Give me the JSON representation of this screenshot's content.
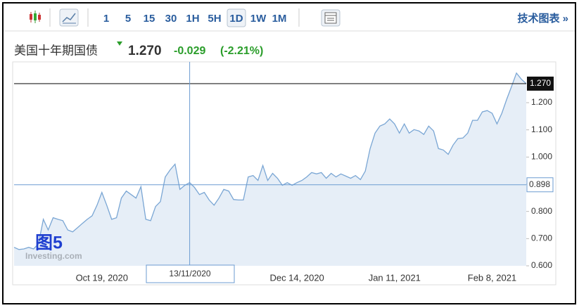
{
  "toolbar": {
    "intervals": [
      "1",
      "5",
      "15",
      "30",
      "1H",
      "5H",
      "1D",
      "1W",
      "1M"
    ],
    "link": "技术图表 »"
  },
  "quote": {
    "name": "美国十年期国债",
    "price": "1.270",
    "change": "-0.029",
    "change_percent": "(-2.21%)"
  },
  "chart_data": {
    "type": "area",
    "categories": [
      null,
      null,
      null,
      null,
      null,
      null,
      null,
      null,
      null,
      null,
      null,
      null,
      null,
      null,
      null,
      null,
      null,
      null,
      "Oct 19, 2020",
      null,
      null,
      null,
      null,
      null,
      null,
      null,
      null,
      null,
      null,
      null,
      null,
      null,
      null,
      null,
      null,
      null,
      null,
      null,
      null,
      null,
      null,
      null,
      null,
      null,
      null,
      null,
      null,
      null,
      null,
      null,
      null,
      null,
      null,
      null,
      null,
      null,
      null,
      null,
      "Dec 14, 2020",
      null,
      null,
      null,
      null,
      null,
      null,
      null,
      null,
      null,
      null,
      null,
      null,
      null,
      null,
      null,
      null,
      null,
      null,
      null,
      "Jan 11, 2021",
      null,
      null,
      null,
      null,
      null,
      null,
      null,
      null,
      null,
      null,
      null,
      null,
      null,
      null,
      null,
      null,
      null,
      null,
      null,
      "Feb 8, 2021",
      null,
      null,
      null,
      null,
      null,
      null,
      null
    ],
    "series": [
      {
        "color": "#7aa6d4",
        "values": [
          0.668,
          0.66,
          0.662,
          0.668,
          0.662,
          0.681,
          0.771,
          0.732,
          0.777,
          0.771,
          0.766,
          0.732,
          0.725,
          0.74,
          0.756,
          0.771,
          0.784,
          0.823,
          0.87,
          0.823,
          0.771,
          0.777,
          0.849,
          0.875,
          0.862,
          0.849,
          0.891,
          0.771,
          0.766,
          0.818,
          0.836,
          0.927,
          0.953,
          0.974,
          0.881,
          0.896,
          0.906,
          0.888,
          0.862,
          0.87,
          0.842,
          0.823,
          0.849,
          0.881,
          0.875,
          0.844,
          0.842,
          0.842,
          0.927,
          0.932,
          0.914,
          0.969,
          0.914,
          0.94,
          0.922,
          0.896,
          0.906,
          0.896,
          0.906,
          0.914,
          0.927,
          0.943,
          0.938,
          0.943,
          0.922,
          0.94,
          0.927,
          0.938,
          0.93,
          0.922,
          0.932,
          0.917,
          0.948,
          1.031,
          1.088,
          1.114,
          1.122,
          1.14,
          1.122,
          1.088,
          1.122,
          1.088,
          1.101,
          1.096,
          1.083,
          1.114,
          1.096,
          1.031,
          1.026,
          1.01,
          1.044,
          1.068,
          1.07,
          1.088,
          1.135,
          1.135,
          1.166,
          1.171,
          1.161,
          1.122,
          1.161,
          1.213,
          1.26,
          1.309,
          1.286,
          1.27
        ]
      }
    ],
    "ylim": [
      0.6,
      1.35
    ],
    "yticks": [
      {
        "value": 0.6,
        "label": "0.600"
      },
      {
        "value": 0.7,
        "label": "0.700"
      },
      {
        "value": 0.8,
        "label": "0.800"
      },
      {
        "value": 0.9,
        "label": "0.900"
      },
      {
        "value": 1.0,
        "label": "1.000"
      },
      {
        "value": 1.1,
        "label": "1.100"
      },
      {
        "value": 1.2,
        "label": "1.200"
      }
    ],
    "last_price": {
      "value": 1.27,
      "label": "1.270"
    },
    "crosshair": {
      "date": "13/11/2020",
      "value": 0.898
    },
    "annotation": "图5",
    "watermark": "Investing.com"
  }
}
